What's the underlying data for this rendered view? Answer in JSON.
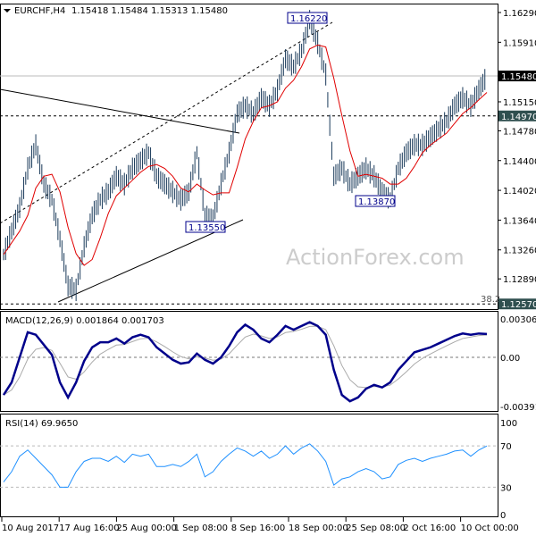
{
  "header": {
    "symbol": "EURCHF,H4",
    "ohlc": "1.15418 1.15484 1.15313 1.15480"
  },
  "watermark": "ActionForex.com",
  "colors": {
    "bars": "#1a3a5a",
    "ma": "#e00000",
    "macd": "#00008b",
    "signal": "#aaaaaa",
    "rsi": "#1e90ff",
    "tag_current": "#000000",
    "tag_level": "#2f4f4f"
  },
  "chart_data": [
    {
      "type": "bar",
      "name": "price",
      "title": "EURCHF,H4",
      "categories": [
        "10 Aug 2017",
        "17 Aug 16:00",
        "25 Aug 00:00",
        "1 Sep 08:00",
        "8 Sep 16:00",
        "18 Sep 00:00",
        "25 Sep 08:00",
        "2 Oct 16:00",
        "10 Oct 00:00"
      ],
      "yticks": [
        "1.16290",
        "1.15910",
        "1.15150",
        "1.14780",
        "1.14400",
        "1.14020",
        "1.13640",
        "1.13260",
        "1.12890"
      ],
      "ylim": [
        1.1251,
        1.1629
      ],
      "closes": [
        1.132,
        1.135,
        1.138,
        1.143,
        1.146,
        1.141,
        1.139,
        1.134,
        1.128,
        1.1275,
        1.133,
        1.137,
        1.139,
        1.14,
        1.142,
        1.141,
        1.143,
        1.144,
        1.145,
        1.142,
        1.141,
        1.14,
        1.139,
        1.14,
        1.145,
        1.137,
        1.1365,
        1.141,
        1.145,
        1.15,
        1.151,
        1.15,
        1.152,
        1.151,
        1.153,
        1.157,
        1.156,
        1.158,
        1.162,
        1.159,
        1.155,
        1.142,
        1.143,
        1.141,
        1.142,
        1.143,
        1.142,
        1.14,
        1.139,
        1.143,
        1.145,
        1.146,
        1.146,
        1.147,
        1.148,
        1.149,
        1.151,
        1.152,
        1.151,
        1.153,
        1.1548
      ],
      "levels": {
        "current": "1.15480",
        "resistance": "1.14970",
        "fib": "1.12570",
        "fib_label": "38.2"
      },
      "annotations": [
        "1.16220",
        "1.13550",
        "1.13870"
      ]
    },
    {
      "type": "line",
      "name": "MACD",
      "label": "MACD(12,26,9) 0.001864 0.001703",
      "yticks": [
        "0.003063",
        "0.00",
        "-0.003914"
      ],
      "ylim": [
        -0.003914,
        0.003063
      ],
      "values": [
        -0.003,
        -0.002,
        0.0,
        0.002,
        0.0018,
        0.001,
        0.0002,
        -0.002,
        -0.0032,
        -0.002,
        -0.0003,
        0.0008,
        0.0012,
        0.0012,
        0.0015,
        0.0011,
        0.0016,
        0.0018,
        0.0016,
        0.0008,
        0.0003,
        -0.0002,
        -0.0005,
        -0.0004,
        0.0003,
        -0.0002,
        -0.0005,
        0.0,
        0.0009,
        0.002,
        0.0026,
        0.0022,
        0.0015,
        0.0012,
        0.0018,
        0.0025,
        0.0022,
        0.0025,
        0.0028,
        0.0025,
        0.0018,
        -0.001,
        -0.003,
        -0.0035,
        -0.0032,
        -0.0025,
        -0.0022,
        -0.0024,
        -0.002,
        -0.001,
        -0.0003,
        0.0004,
        0.0006,
        0.0008,
        0.0011,
        0.0014,
        0.0017,
        0.0019,
        0.0018,
        0.0019,
        0.00186
      ]
    },
    {
      "type": "line",
      "name": "RSI",
      "label": "RSI(14) 69.9650",
      "yticks": [
        "100",
        "70",
        "30",
        "0"
      ],
      "ylim": [
        0,
        100
      ],
      "values": [
        35,
        45,
        60,
        66,
        58,
        50,
        42,
        30,
        30,
        45,
        55,
        58,
        58,
        55,
        60,
        54,
        62,
        60,
        62,
        50,
        50,
        52,
        50,
        55,
        62,
        40,
        45,
        55,
        62,
        68,
        65,
        60,
        65,
        58,
        62,
        70,
        62,
        68,
        72,
        65,
        55,
        32,
        38,
        40,
        45,
        48,
        45,
        38,
        40,
        52,
        56,
        58,
        55,
        58,
        60,
        62,
        65,
        66,
        60,
        66,
        69.965
      ]
    }
  ]
}
